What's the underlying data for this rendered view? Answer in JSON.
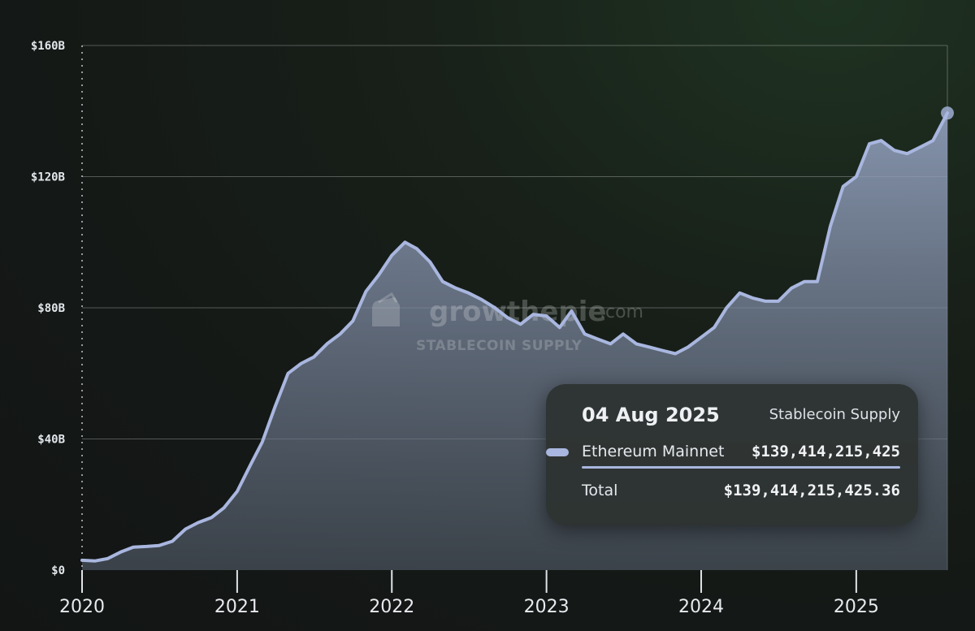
{
  "chart_data": {
    "type": "area",
    "metric": "Stablecoin Supply",
    "yticks": [
      "$0",
      "$40B",
      "$80B",
      "$120B",
      "$160B"
    ],
    "ylim": [
      0,
      160
    ],
    "xticks": [
      "2020",
      "2021",
      "2022",
      "2023",
      "2024",
      "2025"
    ],
    "xlim": [
      "2020-01-01",
      "2025-08-04"
    ],
    "grid": true,
    "line_color": "#a9b6df",
    "series": [
      {
        "name": "Ethereum Mainnet",
        "points": [
          [
            "2020-01-01",
            3.0
          ],
          [
            "2020-02-01",
            2.8
          ],
          [
            "2020-03-01",
            3.5
          ],
          [
            "2020-04-01",
            5.5
          ],
          [
            "2020-05-01",
            7.0
          ],
          [
            "2020-06-01",
            7.2
          ],
          [
            "2020-07-01",
            7.5
          ],
          [
            "2020-08-01",
            8.8
          ],
          [
            "2020-09-01",
            12.5
          ],
          [
            "2020-10-01",
            14.5
          ],
          [
            "2020-11-01",
            16.0
          ],
          [
            "2020-12-01",
            19.0
          ],
          [
            "2021-01-01",
            24.0
          ],
          [
            "2021-02-01",
            32.0
          ],
          [
            "2021-03-01",
            39.0
          ],
          [
            "2021-04-01",
            50.0
          ],
          [
            "2021-05-01",
            60.0
          ],
          [
            "2021-06-01",
            63.0
          ],
          [
            "2021-07-01",
            65.0
          ],
          [
            "2021-08-01",
            69.0
          ],
          [
            "2021-09-01",
            72.0
          ],
          [
            "2021-10-01",
            76.0
          ],
          [
            "2021-11-01",
            85.0
          ],
          [
            "2021-12-01",
            90.0
          ],
          [
            "2022-01-01",
            96.0
          ],
          [
            "2022-02-01",
            100.0
          ],
          [
            "2022-03-01",
            98.0
          ],
          [
            "2022-04-01",
            94.0
          ],
          [
            "2022-05-01",
            88.0
          ],
          [
            "2022-06-01",
            86.0
          ],
          [
            "2022-07-01",
            84.5
          ],
          [
            "2022-08-01",
            82.5
          ],
          [
            "2022-09-01",
            80.0
          ],
          [
            "2022-10-01",
            77.0
          ],
          [
            "2022-11-01",
            75.0
          ],
          [
            "2022-12-01",
            78.0
          ],
          [
            "2023-01-01",
            77.5
          ],
          [
            "2023-02-01",
            74.0
          ],
          [
            "2023-03-01",
            79.0
          ],
          [
            "2023-04-01",
            72.0
          ],
          [
            "2023-05-01",
            70.5
          ],
          [
            "2023-06-01",
            69.0
          ],
          [
            "2023-07-01",
            72.0
          ],
          [
            "2023-08-01",
            69.0
          ],
          [
            "2023-09-01",
            68.0
          ],
          [
            "2023-10-01",
            67.0
          ],
          [
            "2023-11-01",
            66.0
          ],
          [
            "2023-12-01",
            68.0
          ],
          [
            "2024-01-01",
            71.0
          ],
          [
            "2024-02-01",
            74.0
          ],
          [
            "2024-03-01",
            80.0
          ],
          [
            "2024-04-01",
            84.5
          ],
          [
            "2024-05-01",
            83.0
          ],
          [
            "2024-06-01",
            82.0
          ],
          [
            "2024-07-01",
            82.0
          ],
          [
            "2024-08-01",
            86.0
          ],
          [
            "2024-09-01",
            88.0
          ],
          [
            "2024-10-01",
            88.0
          ],
          [
            "2024-11-01",
            105.0
          ],
          [
            "2024-12-01",
            117.0
          ],
          [
            "2025-01-01",
            120.0
          ],
          [
            "2025-02-01",
            130.0
          ],
          [
            "2025-03-01",
            131.0
          ],
          [
            "2025-04-01",
            128.0
          ],
          [
            "2025-05-01",
            127.0
          ],
          [
            "2025-06-01",
            129.0
          ],
          [
            "2025-07-01",
            131.0
          ],
          [
            "2025-08-04",
            139.4
          ]
        ]
      }
    ]
  },
  "watermark": {
    "brand": "growthepie",
    "domain": ".com",
    "subtitle": "STABLECOIN SUPPLY"
  },
  "tooltip": {
    "date": "04 Aug 2025",
    "metric": "Stablecoin Supply",
    "series_name": "Ethereum Mainnet",
    "series_value": "$139,414,215,425",
    "total_label": "Total",
    "total_value": "$139,414,215,425.36"
  }
}
